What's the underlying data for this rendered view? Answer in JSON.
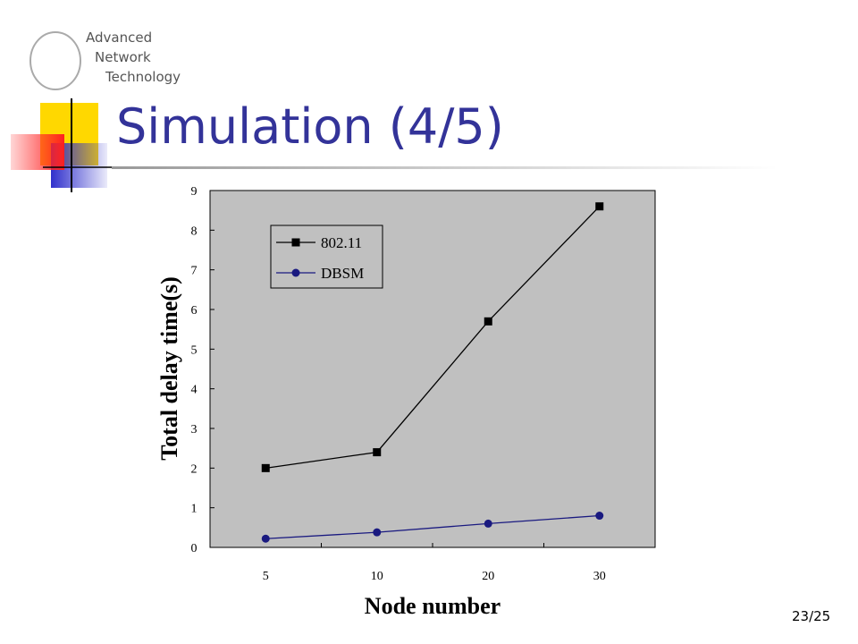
{
  "slide": {
    "logo": [
      "Advanced",
      "Network",
      "Technology"
    ],
    "title": "Simulation (4/5)",
    "page_number": "23/25"
  },
  "chart_data": {
    "type": "line",
    "x_label": "Node number",
    "y_label": "Total delay time(s)",
    "categories": [
      "5",
      "10",
      "20",
      "30"
    ],
    "series": [
      {
        "name": "802.11",
        "color": "#000000",
        "marker": "square",
        "values": [
          2.0,
          2.4,
          5.7,
          8.6
        ]
      },
      {
        "name": "DBSM",
        "color": "#1a1a80",
        "marker": "circle",
        "values": [
          0.22,
          0.38,
          0.6,
          0.8
        ]
      }
    ],
    "ylim": [
      0,
      9
    ],
    "yticks": [
      0,
      1,
      2,
      3,
      4,
      5,
      6,
      7,
      8,
      9
    ],
    "legend": "upper left",
    "background": "#c0c0c0"
  }
}
